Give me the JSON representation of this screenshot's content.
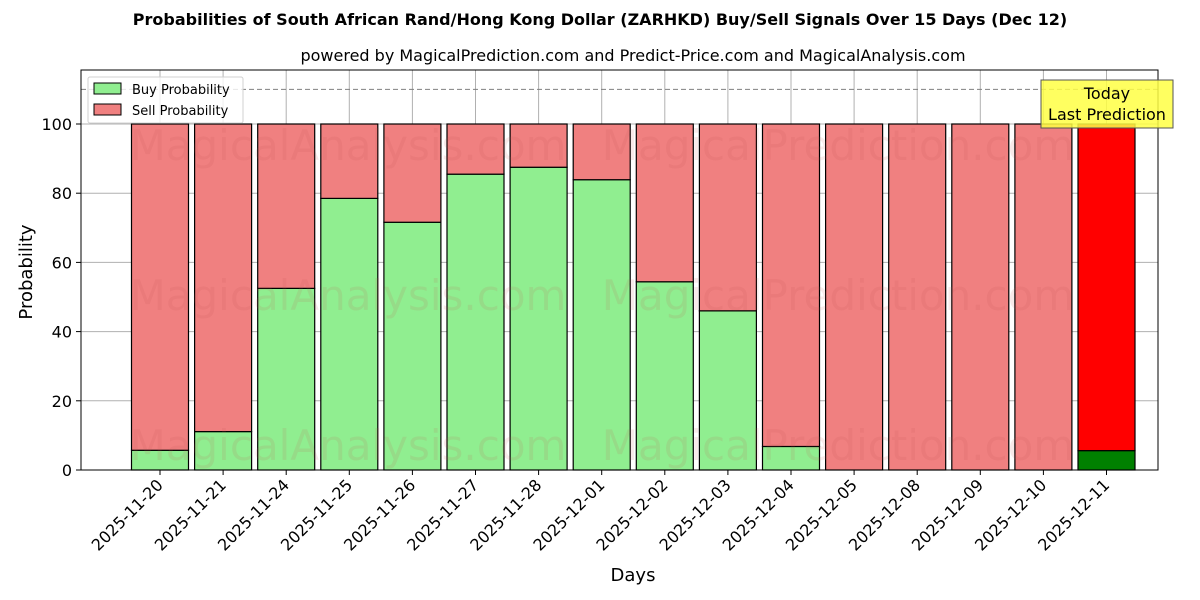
{
  "header": {
    "title": "Probabilities of South African Rand/Hong Kong Dollar (ZARHKD) Buy/Sell Signals Over 15 Days (Dec 12)",
    "subtitle": "powered by MagicalPrediction.com and Predict-Price.com and MagicalAnalysis.com"
  },
  "legend": {
    "buy_label": "Buy Probability",
    "sell_label": "Sell Probability"
  },
  "annotation": {
    "line1": "Today",
    "line2": "Last Prediction"
  },
  "watermarks": [
    "MagicalAnalysis.com",
    "MagicalPrediction.com"
  ],
  "colors": {
    "buy": "#90ee90",
    "sell": "#f08080",
    "today_buy": "#008000",
    "today_sell": "#ff0000",
    "annotation_bg": "#ffff44"
  },
  "chart_data": {
    "type": "bar",
    "stacked": true,
    "title": "Probabilities of South African Rand/Hong Kong Dollar (ZARHKD) Buy/Sell Signals Over 15 Days (Dec 12)",
    "subtitle": "powered by MagicalPrediction.com and Predict-Price.com and MagicalAnalysis.com",
    "xlabel": "Days",
    "ylabel": "Probability",
    "ylim": [
      0,
      115
    ],
    "yticks": [
      0,
      20,
      40,
      60,
      80,
      100
    ],
    "grid": true,
    "legend_position": "upper left",
    "reference_line": {
      "y": 110,
      "style": "dashed"
    },
    "categories": [
      "2025-11-20",
      "2025-11-21",
      "2025-11-24",
      "2025-11-25",
      "2025-11-26",
      "2025-11-27",
      "2025-11-28",
      "2025-12-01",
      "2025-12-02",
      "2025-12-03",
      "2025-12-04",
      "2025-12-05",
      "2025-12-08",
      "2025-12-09",
      "2025-12-10",
      "2025-12-11"
    ],
    "series": [
      {
        "name": "Buy Probability",
        "values": [
          5.7,
          11.1,
          52.5,
          78.5,
          71.6,
          85.5,
          87.5,
          83.9,
          54.4,
          46.0,
          6.8,
          0,
          0,
          0,
          0,
          5.6
        ]
      },
      {
        "name": "Sell Probability",
        "values": [
          94.3,
          88.9,
          47.5,
          21.5,
          28.4,
          14.5,
          12.5,
          16.1,
          45.6,
          54.0,
          93.2,
          100,
          100,
          100,
          100,
          94.4
        ]
      }
    ],
    "annotations": [
      {
        "text": "Today\nLast Prediction",
        "x": "2025-12-11"
      }
    ]
  }
}
